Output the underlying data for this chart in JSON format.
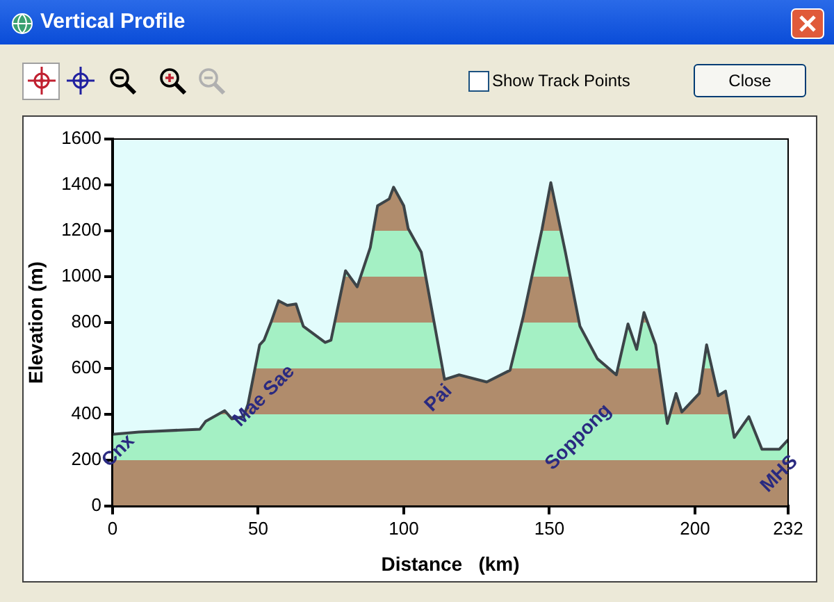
{
  "chart_data": {
    "type": "area",
    "title": "Vertical Profile",
    "xlabel": "Distance   (km)",
    "ylabel": "Elevation (m)",
    "x": [
      0,
      9,
      30,
      32,
      38.5,
      41,
      45,
      46.5,
      50.5,
      52,
      54.5,
      57,
      60,
      63,
      65.5,
      73,
      75,
      80,
      84,
      88.5,
      91,
      95,
      96.5,
      100,
      101.5,
      106,
      109.5,
      114,
      119,
      128.5,
      136.5,
      141,
      147.5,
      150.5,
      155.5,
      160.5,
      166.5,
      173,
      177,
      180,
      182.5,
      186.5,
      190.5,
      193.5,
      195.5,
      201.5,
      204,
      208,
      210.5,
      213.5,
      218.5,
      223,
      229,
      232
    ],
    "series": [
      {
        "color": "#3c4448",
        "values": [
          313,
          323,
          335,
          370,
          416,
          380,
          390,
          444,
          703,
          723,
          804,
          895,
          875,
          881,
          784,
          713,
          723,
          1026,
          956,
          1127,
          1309,
          1339,
          1390,
          1309,
          1210,
          1107,
          865,
          552,
          572,
          541,
          592,
          824,
          1208,
          1410,
          1107,
          784,
          642,
          572,
          794,
          683,
          844,
          703,
          360,
          491,
          410,
          491,
          703,
          481,
          501,
          299,
          390,
          248,
          248,
          289
        ]
      }
    ],
    "xlim": [
      0,
      232
    ],
    "xticks": [
      0,
      50,
      100,
      150,
      200,
      232
    ],
    "ylim": [
      0,
      1600
    ],
    "yticks": [
      0,
      200,
      400,
      600,
      800,
      1000,
      1200,
      1400,
      1600
    ],
    "grid": false,
    "legend": false,
    "marker": "none",
    "line_style": "solid",
    "annotations": [
      "Cnx",
      "Mae Sae",
      "Pai",
      "Soppong",
      "MHS",
      "Show Track Points",
      "Close"
    ]
  }
}
